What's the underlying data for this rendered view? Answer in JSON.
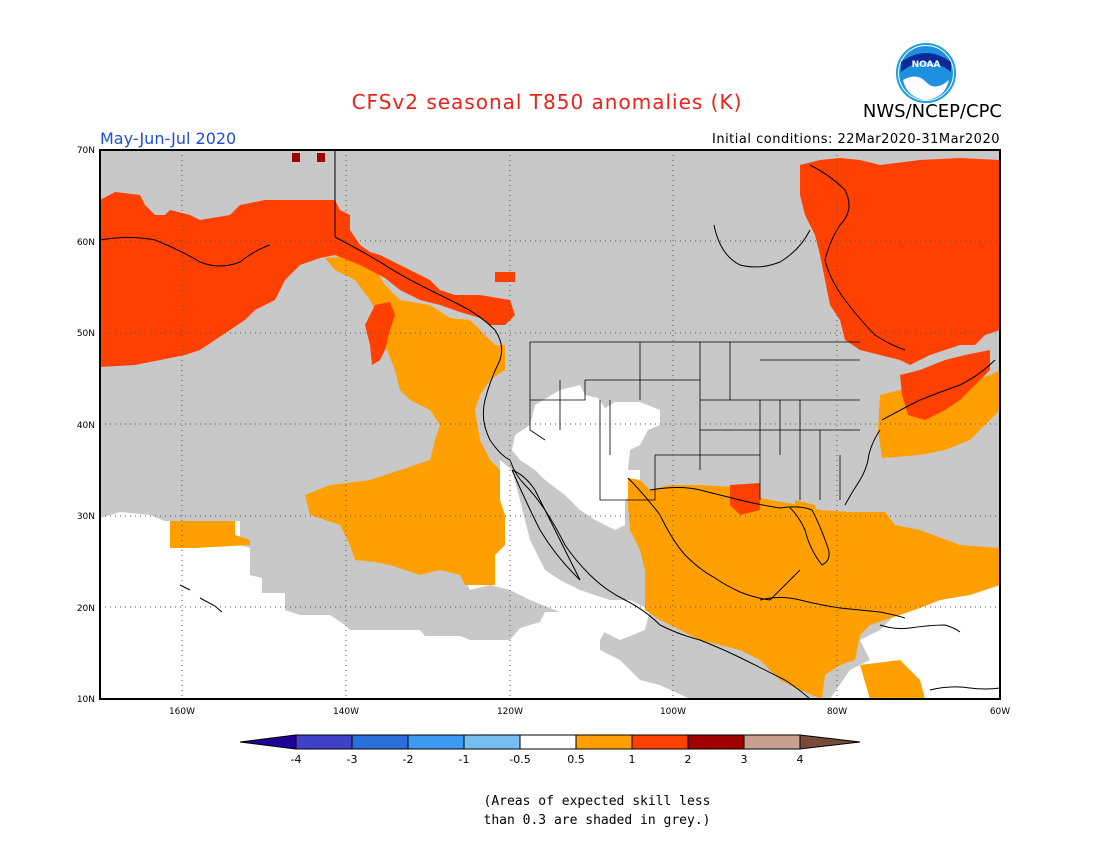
{
  "header": {
    "title": "CFSv2 seasonal T850 anomalies (K)",
    "agency": "NWS/NCEP/CPC",
    "period": "May-Jun-Jul 2020",
    "initial_conditions": "Initial conditions: 22Mar2020-31Mar2020",
    "logo_text": "NOAA"
  },
  "map": {
    "lon_labels": [
      "160W",
      "140W",
      "120W",
      "100W",
      "80W",
      "60W"
    ],
    "lat_labels": [
      "70N",
      "60N",
      "50N",
      "40N",
      "30N",
      "20N",
      "10N"
    ]
  },
  "legend": {
    "labels": [
      "-4",
      "-3",
      "-2",
      "-1",
      "-0.5",
      "0.5",
      "1",
      "2",
      "3",
      "4"
    ],
    "colors": [
      "#1e0096",
      "#4040c8",
      "#2a6edc",
      "#3c9af0",
      "#78bef2",
      "#ffffff",
      "#ffa000",
      "#ff4000",
      "#a00000",
      "#c8a090",
      "#784a38"
    ],
    "skill_mask_color": "#c8c8c8"
  },
  "footnote": {
    "line1": "(Areas of expected skill less",
    "line2": "than 0.3 are shaded in grey.)"
  }
}
